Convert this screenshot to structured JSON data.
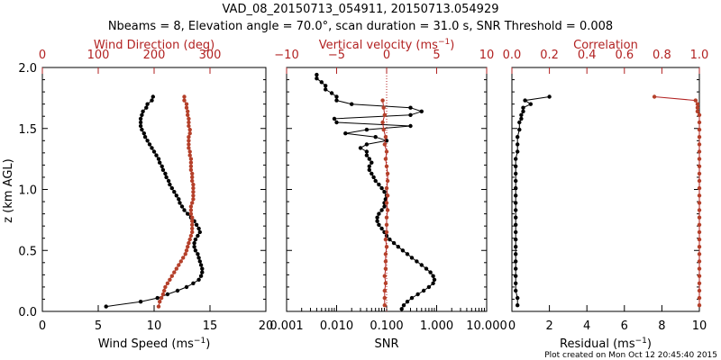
{
  "title_line1": "VAD_08_20150713_054911, 20150713.054929",
  "title_line2": "Nbeams = 8, Elevation angle = 70.0°, scan duration = 31.0 s, SNR Threshold = 0.008",
  "footer": "Plot created on Mon Oct 12 20:45:40 2015",
  "colors": {
    "black": "#000000",
    "red": "#b22222",
    "marker_red": "#b5402a"
  },
  "chart_data": [
    {
      "type": "line",
      "panel": "wind",
      "ylabel": "z (km AGL)",
      "ylim": [
        0.0,
        2.0
      ],
      "y_ticks": [
        "0.0",
        "0.5",
        "1.0",
        "1.5",
        "2.0"
      ],
      "bottom_axis": {
        "label": "Wind Speed (ms",
        "sup": "−1",
        "close": ")",
        "lim": [
          0,
          20
        ],
        "ticks": [
          "0",
          "5",
          "10",
          "15",
          "20"
        ]
      },
      "top_axis": {
        "label": "Wind Direction (deg)",
        "lim": [
          0,
          400
        ],
        "ticks": [
          "0",
          "100",
          "200",
          "300"
        ]
      },
      "series": [
        {
          "name": "Wind Speed",
          "axis": "bottom",
          "color": "black",
          "z": [
            0.04,
            0.08,
            0.11,
            0.14,
            0.17,
            0.2,
            0.23,
            0.26,
            0.29,
            0.32,
            0.35,
            0.38,
            0.41,
            0.44,
            0.47,
            0.5,
            0.53,
            0.56,
            0.59,
            0.62,
            0.65,
            0.68,
            0.71,
            0.74,
            0.77,
            0.8,
            0.83,
            0.86,
            0.89,
            0.92,
            0.95,
            0.98,
            1.01,
            1.04,
            1.07,
            1.1,
            1.13,
            1.16,
            1.19,
            1.22,
            1.25,
            1.28,
            1.31,
            1.34,
            1.37,
            1.4,
            1.43,
            1.46,
            1.49,
            1.52,
            1.55,
            1.58,
            1.61,
            1.64,
            1.67,
            1.7,
            1.73,
            1.76
          ],
          "values": [
            5.7,
            8.8,
            10.3,
            11.2,
            12.1,
            12.9,
            13.5,
            14.0,
            14.2,
            14.3,
            14.3,
            14.2,
            14.1,
            14.0,
            13.9,
            13.7,
            13.6,
            13.6,
            13.7,
            13.9,
            14.1,
            14.0,
            13.8,
            13.6,
            13.3,
            13.0,
            12.7,
            12.5,
            12.3,
            12.2,
            12.0,
            11.8,
            11.6,
            11.4,
            11.3,
            11.1,
            11.0,
            10.8,
            10.7,
            10.5,
            10.4,
            10.2,
            10.0,
            9.8,
            9.6,
            9.4,
            9.2,
            9.1,
            8.9,
            8.8,
            8.8,
            8.8,
            8.9,
            9.0,
            9.3,
            9.4,
            9.8,
            9.9
          ]
        },
        {
          "name": "Wind Direction",
          "axis": "top",
          "color": "red",
          "z": [
            0.04,
            0.08,
            0.11,
            0.14,
            0.17,
            0.2,
            0.23,
            0.26,
            0.29,
            0.32,
            0.35,
            0.38,
            0.41,
            0.44,
            0.47,
            0.5,
            0.53,
            0.56,
            0.59,
            0.62,
            0.65,
            0.68,
            0.71,
            0.74,
            0.77,
            0.8,
            0.83,
            0.86,
            0.89,
            0.92,
            0.95,
            0.98,
            1.01,
            1.04,
            1.07,
            1.1,
            1.13,
            1.16,
            1.19,
            1.22,
            1.25,
            1.28,
            1.31,
            1.34,
            1.37,
            1.4,
            1.43,
            1.46,
            1.49,
            1.52,
            1.55,
            1.58,
            1.61,
            1.64,
            1.67,
            1.7,
            1.73,
            1.76
          ],
          "values": [
            208,
            210,
            213,
            216,
            218,
            220,
            224,
            228,
            232,
            236,
            240,
            244,
            248,
            252,
            256,
            258,
            260,
            262,
            264,
            266,
            268,
            268,
            268,
            268,
            268,
            266,
            266,
            266,
            268,
            270,
            270,
            270,
            270,
            270,
            268,
            268,
            268,
            266,
            266,
            266,
            266,
            264,
            264,
            262,
            262,
            262,
            262,
            264,
            264,
            262,
            262,
            262,
            260,
            260,
            258,
            258,
            254,
            254
          ]
        }
      ]
    },
    {
      "type": "line",
      "panel": "vertical",
      "ylim": [
        0.0,
        2.0
      ],
      "bottom_axis": {
        "label": "SNR",
        "scale": "log",
        "lim": [
          0.001,
          10.0
        ],
        "ticks": [
          "0.001",
          "0.010",
          "0.100",
          "1.000",
          "10.000"
        ]
      },
      "top_axis": {
        "label": "Vertical velocity (ms",
        "sup": "−1",
        "close": ")",
        "lim": [
          -10,
          10
        ],
        "ticks": [
          "−10",
          "−5",
          "0",
          "5",
          "10"
        ]
      },
      "series": [
        {
          "name": "SNR",
          "axis": "bottom",
          "color": "black",
          "z": [
            0.02,
            0.05,
            0.08,
            0.11,
            0.14,
            0.17,
            0.2,
            0.23,
            0.26,
            0.29,
            0.32,
            0.35,
            0.38,
            0.41,
            0.44,
            0.47,
            0.5,
            0.53,
            0.56,
            0.59,
            0.62,
            0.65,
            0.68,
            0.71,
            0.74,
            0.77,
            0.8,
            0.83,
            0.86,
            0.89,
            0.92,
            0.95,
            0.98,
            1.01,
            1.04,
            1.07,
            1.1,
            1.13,
            1.16,
            1.19,
            1.22,
            1.25,
            1.28,
            1.31,
            1.34,
            1.37,
            1.4,
            1.43,
            1.46,
            1.49,
            1.52,
            1.55,
            1.58,
            1.61,
            1.64,
            1.67,
            1.7,
            1.73,
            1.76,
            1.79,
            1.82,
            1.85,
            1.88,
            1.91,
            1.94
          ],
          "values": [
            0.2,
            0.22,
            0.26,
            0.32,
            0.42,
            0.55,
            0.7,
            0.85,
            0.9,
            0.85,
            0.75,
            0.62,
            0.5,
            0.4,
            0.32,
            0.26,
            0.21,
            0.17,
            0.14,
            0.115,
            0.1,
            0.09,
            0.08,
            0.07,
            0.065,
            0.065,
            0.07,
            0.08,
            0.09,
            0.09,
            0.095,
            0.1,
            0.09,
            0.08,
            0.07,
            0.06,
            0.055,
            0.05,
            0.045,
            0.045,
            0.05,
            0.045,
            0.04,
            0.04,
            0.03,
            0.04,
            0.1,
            0.06,
            0.015,
            0.04,
            0.3,
            0.01,
            0.009,
            0.3,
            0.5,
            0.3,
            0.02,
            0.01,
            0.01,
            0.008,
            0.006,
            0.006,
            0.005,
            0.004,
            0.004
          ]
        },
        {
          "name": "Vertical velocity",
          "axis": "top",
          "color": "red",
          "z": [
            0.05,
            0.11,
            0.17,
            0.23,
            0.29,
            0.35,
            0.41,
            0.47,
            0.53,
            0.59,
            0.65,
            0.71,
            0.77,
            0.83,
            0.89,
            0.95,
            1.01,
            1.07,
            1.13,
            1.19,
            1.25,
            1.31,
            1.37,
            1.43,
            1.49,
            1.55,
            1.61,
            1.67,
            1.73
          ],
          "values": [
            -0.2,
            -0.2,
            -0.2,
            -0.1,
            -0.2,
            -0.1,
            -0.1,
            -0.1,
            0.0,
            -0.1,
            0.0,
            0.0,
            0.0,
            0.1,
            0.0,
            0.1,
            0.0,
            0.1,
            0.1,
            0.0,
            -0.1,
            0.0,
            -0.2,
            -0.1,
            -0.3,
            -0.4,
            -0.2,
            -0.3,
            -0.4
          ]
        }
      ]
    },
    {
      "type": "line",
      "panel": "residual",
      "ylim": [
        0.0,
        2.0
      ],
      "bottom_axis": {
        "label": "Residual (ms",
        "sup": "−1",
        "close": ")",
        "lim": [
          0,
          10
        ],
        "ticks": [
          "0",
          "2",
          "4",
          "6",
          "8",
          "10"
        ]
      },
      "top_axis": {
        "label": "Correlation",
        "lim": [
          0.0,
          1.0
        ],
        "ticks": [
          "0.0",
          "0.2",
          "0.4",
          "0.6",
          "0.8",
          "1.0"
        ]
      },
      "series": [
        {
          "name": "Residual",
          "axis": "bottom",
          "color": "black",
          "z": [
            0.05,
            0.11,
            0.17,
            0.23,
            0.29,
            0.35,
            0.41,
            0.47,
            0.53,
            0.59,
            0.65,
            0.71,
            0.77,
            0.83,
            0.89,
            0.95,
            1.01,
            1.07,
            1.13,
            1.19,
            1.25,
            1.31,
            1.37,
            1.43,
            1.49,
            1.55,
            1.58,
            1.61,
            1.64,
            1.67,
            1.7,
            1.73,
            1.76
          ],
          "values": [
            0.3,
            0.3,
            0.2,
            0.2,
            0.2,
            0.2,
            0.2,
            0.2,
            0.2,
            0.2,
            0.2,
            0.2,
            0.2,
            0.2,
            0.2,
            0.2,
            0.2,
            0.2,
            0.2,
            0.2,
            0.2,
            0.3,
            0.3,
            0.3,
            0.4,
            0.4,
            0.5,
            0.5,
            0.6,
            0.6,
            1.0,
            0.7,
            2.0
          ]
        },
        {
          "name": "Correlation",
          "axis": "top",
          "color": "red",
          "z": [
            0.05,
            0.11,
            0.17,
            0.23,
            0.29,
            0.35,
            0.41,
            0.47,
            0.53,
            0.59,
            0.65,
            0.71,
            0.77,
            0.83,
            0.89,
            0.95,
            1.01,
            1.07,
            1.13,
            1.19,
            1.25,
            1.31,
            1.37,
            1.43,
            1.49,
            1.55,
            1.61,
            1.64,
            1.67,
            1.7,
            1.73,
            1.76
          ],
          "values": [
            1.0,
            1.0,
            1.0,
            1.0,
            1.0,
            1.0,
            1.0,
            1.0,
            1.0,
            1.0,
            1.0,
            1.0,
            1.0,
            1.0,
            1.0,
            1.0,
            1.0,
            1.0,
            1.0,
            1.0,
            1.0,
            1.0,
            1.0,
            1.0,
            1.0,
            1.0,
            1.0,
            0.99,
            0.99,
            0.99,
            0.98,
            0.76
          ]
        }
      ]
    }
  ]
}
